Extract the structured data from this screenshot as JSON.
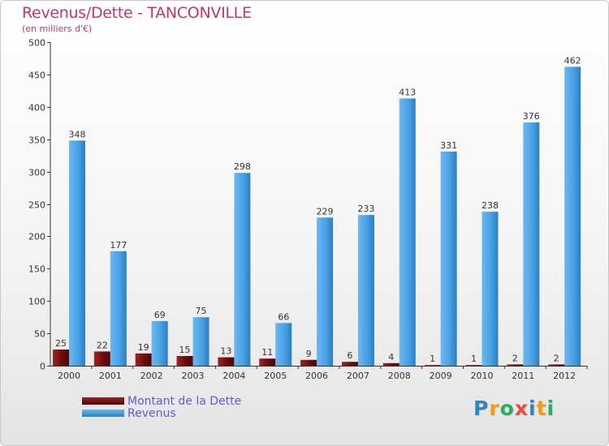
{
  "chart_data": {
    "type": "bar",
    "title": "Revenus/Dette - TANCONVILLE",
    "subtitle": "(en milliers d'€)",
    "categories": [
      "2000",
      "2001",
      "2002",
      "2003",
      "2004",
      "2005",
      "2006",
      "2007",
      "2008",
      "2009",
      "2010",
      "2011",
      "2012"
    ],
    "series": [
      {
        "name": "Montant de la Dette",
        "color": "#7a1010",
        "values": [
          25,
          22,
          19,
          15,
          13,
          11,
          9,
          6,
          4,
          1,
          1,
          2,
          2
        ]
      },
      {
        "name": "Revenus",
        "color": "#4da3e6",
        "values": [
          348,
          177,
          69,
          75,
          298,
          66,
          229,
          233,
          413,
          331,
          238,
          376,
          462
        ]
      }
    ],
    "ylim": [
      0,
      500
    ],
    "yticks": [
      0,
      50,
      100,
      150,
      200,
      250,
      300,
      350,
      400,
      450,
      500
    ],
    "grid": false,
    "legend_position": "bottom-left",
    "xlabel": "",
    "ylabel": ""
  },
  "logo": {
    "text": "Proxiti",
    "letters": [
      {
        "ch": "P",
        "color": "#2e86c1"
      },
      {
        "ch": "r",
        "color": "#f39c12"
      },
      {
        "ch": "o",
        "color": "#27ae60"
      },
      {
        "ch": "x",
        "color": "#e74c3c"
      },
      {
        "ch": "i",
        "color": "#2e86c1"
      },
      {
        "ch": "t",
        "color": "#f39c12"
      },
      {
        "ch": "i",
        "color": "#27ae60"
      }
    ]
  }
}
